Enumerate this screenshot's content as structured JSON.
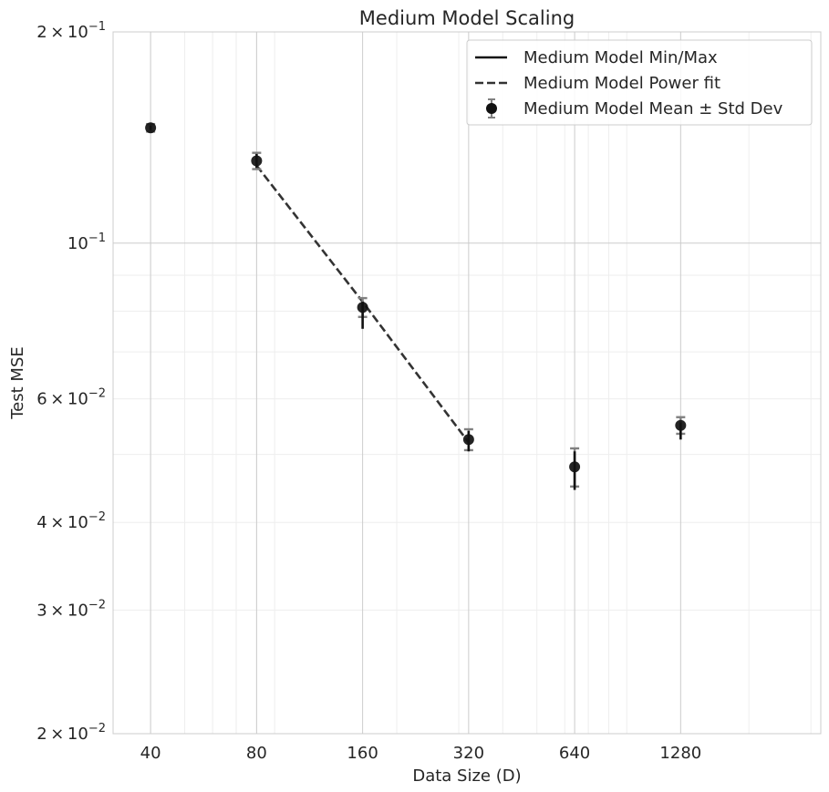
{
  "chart_data": {
    "type": "scatter",
    "title": "Medium Model Scaling",
    "xlabel": "Data Size (D)",
    "ylabel": "Test MSE",
    "xscale": "log",
    "yscale": "log",
    "xlim": [
      31.3,
      3200
    ],
    "ylim": [
      0.02,
      0.2
    ],
    "x_ticks": [
      {
        "value": 40,
        "label": "40"
      },
      {
        "value": 80,
        "label": "80"
      },
      {
        "value": 160,
        "label": "160"
      },
      {
        "value": 320,
        "label": "320"
      },
      {
        "value": 640,
        "label": "640"
      },
      {
        "value": 1280,
        "label": "1280"
      }
    ],
    "y_ticks": [
      {
        "value": 0.2,
        "mantissa": "2",
        "exponent": "−1"
      },
      {
        "value": 0.1,
        "mantissa": "",
        "exponent": "−1"
      },
      {
        "value": 0.06,
        "mantissa": "6",
        "exponent": "−2"
      },
      {
        "value": 0.04,
        "mantissa": "4",
        "exponent": "−2"
      },
      {
        "value": 0.03,
        "mantissa": "3",
        "exponent": "−2"
      },
      {
        "value": 0.02,
        "mantissa": "2",
        "exponent": "−2"
      }
    ],
    "grid": true,
    "legend_position": "top-right",
    "legend": [
      {
        "kind": "line",
        "label": "Medium Model Min/Max"
      },
      {
        "kind": "dashed",
        "label": "Medium Model Power fit"
      },
      {
        "kind": "errorbar",
        "label": "Medium Model Mean ± Std Dev"
      }
    ],
    "series": [
      {
        "name": "Medium Model Mean ± Std Dev",
        "x": [
          40,
          80,
          160,
          320,
          640,
          1280
        ],
        "y": [
          0.146,
          0.131,
          0.081,
          0.0525,
          0.048,
          0.055
        ],
        "std": [
          0.0018,
          0.0035,
          0.0025,
          0.0018,
          0.003,
          0.0015
        ],
        "min": [
          0.145,
          0.128,
          0.0755,
          0.0505,
          0.0445,
          0.0525
        ],
        "max": [
          0.147,
          0.134,
          0.0825,
          0.054,
          0.0505,
          0.0555
        ]
      },
      {
        "name": "Medium Model Power fit",
        "x": [
          80,
          160,
          320
        ],
        "y": [
          0.129,
          0.0825,
          0.052
        ]
      }
    ],
    "colors": {
      "points": "#111111",
      "minmax": "#111111",
      "errorbar": "#808080",
      "fit": "#333333",
      "grid_major": "#cccccc",
      "grid_minor": "#eeeeee",
      "axes_edge": "#cccccc"
    }
  }
}
